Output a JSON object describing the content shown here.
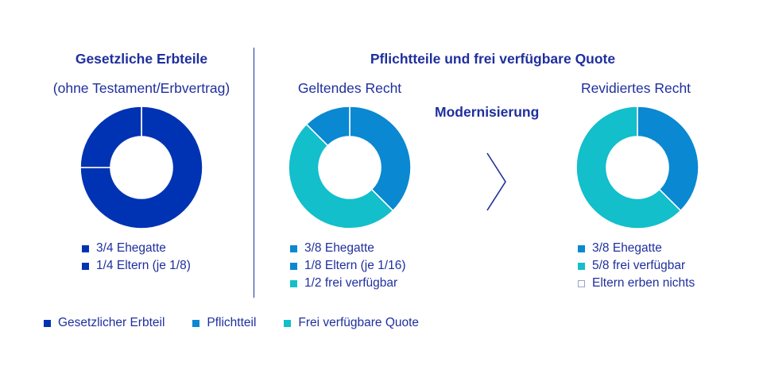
{
  "colors": {
    "gesetzlich": "#0033b3",
    "pflichtteil": "#0a88d2",
    "frei": "#12bfca",
    "text": "#1f2f9e"
  },
  "header": {
    "left_title": "Gesetzliche Erbteile",
    "left_subtitle": "(ohne Testament/Erbvertrag)",
    "right_title": "Pflichtteile und frei verfügbare Quote",
    "geltendes": "Geltendes Recht",
    "revidiertes": "Revidiertes Recht",
    "modernisierung": "Modernisierung"
  },
  "arrow_icon": "chevron-right-icon",
  "chart_data": [
    {
      "type": "pie",
      "title": "Gesetzliche Erbteile",
      "subtitle": "(ohne Testament/Erbvertrag)",
      "slices": [
        {
          "label": "3/4 Ehegatte",
          "value": 0.75,
          "color": "#0033b3"
        },
        {
          "label": "1/4 Eltern (je 1/8)",
          "value": 0.25,
          "color": "#0033b3"
        }
      ],
      "legend": [
        {
          "label": "3/4 Ehegatte",
          "color": "#0033b3"
        },
        {
          "label": "1/4 Eltern (je 1/8)",
          "color": "#0033b3"
        }
      ]
    },
    {
      "type": "pie",
      "title": "Geltendes Recht",
      "slices": [
        {
          "label": "3/8 Ehegatte",
          "value": 0.375,
          "color": "#0a88d2"
        },
        {
          "label": "1/2 frei verfügbar",
          "value": 0.5,
          "color": "#12bfca"
        },
        {
          "label": "1/8 Eltern (je 1/16)",
          "value": 0.125,
          "color": "#0a88d2"
        }
      ],
      "legend": [
        {
          "label": "3/8 Ehegatte",
          "color": "#0a88d2"
        },
        {
          "label": "1/8 Eltern (je 1/16)",
          "color": "#0a88d2"
        },
        {
          "label": "1/2 frei verfügbar",
          "color": "#12bfca"
        }
      ]
    },
    {
      "type": "pie",
      "title": "Revidiertes Recht",
      "slices": [
        {
          "label": "3/8 Ehegatte",
          "value": 0.375,
          "color": "#0a88d2"
        },
        {
          "label": "5/8 frei verfügbar",
          "value": 0.625,
          "color": "#12bfca"
        }
      ],
      "legend": [
        {
          "label": "3/8 Ehegatte",
          "color": "#0a88d2"
        },
        {
          "label": "5/8 frei verfügbar",
          "color": "#12bfca"
        },
        {
          "label": "Eltern erben nichts",
          "color": "#ffffff",
          "outline": true
        }
      ]
    }
  ],
  "bottom_legend": [
    {
      "label": "Gesetzlicher Erbteil",
      "color": "#0033b3"
    },
    {
      "label": "Pflichtteil",
      "color": "#0a88d2"
    },
    {
      "label": "Frei verfügbare Quote",
      "color": "#12bfca"
    }
  ]
}
